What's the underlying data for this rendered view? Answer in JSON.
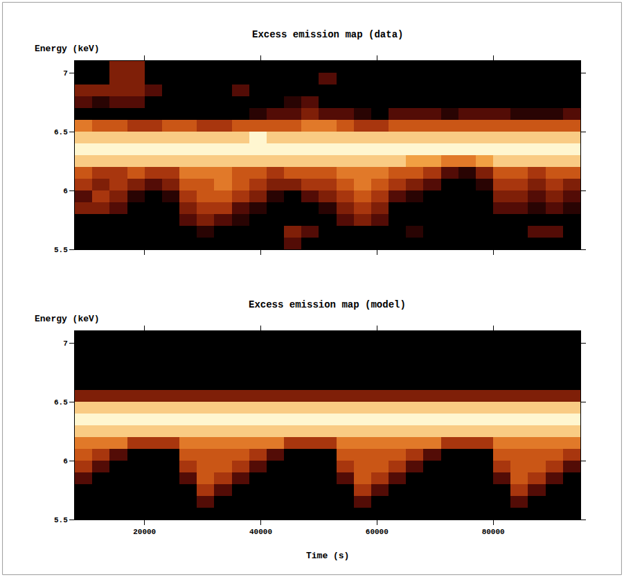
{
  "chart_data": [
    {
      "type": "heatmap",
      "title": "Excess emission map (data)",
      "ylabel": "Energy (keV)",
      "x": [
        9500,
        12500,
        15500,
        18500,
        21500,
        24500,
        27500,
        30500,
        33500,
        36500,
        39500,
        42500,
        45500,
        48500,
        51500,
        54500,
        57500,
        60500,
        63500,
        66500,
        69500,
        72500,
        75500,
        78500,
        81500,
        84500,
        87500,
        90500,
        93500
      ],
      "y": [
        5.55,
        5.65,
        5.75,
        5.85,
        5.95,
        6.05,
        6.15,
        6.25,
        6.35,
        6.45,
        6.55,
        6.65,
        6.75,
        6.85,
        6.95,
        7.05
      ],
      "z": [
        [
          0,
          0,
          0,
          0,
          0,
          0,
          0,
          0,
          0,
          0,
          0,
          0,
          2,
          0,
          0,
          0,
          0,
          0,
          0,
          0,
          0,
          0,
          0,
          0,
          0,
          0,
          0,
          0,
          0
        ],
        [
          0,
          0,
          0,
          0,
          0,
          0,
          0,
          1,
          0,
          0,
          0,
          0,
          3,
          2,
          0,
          0,
          0,
          0,
          0,
          1,
          0,
          0,
          0,
          0,
          0,
          0,
          2,
          2,
          0
        ],
        [
          0,
          0,
          0,
          0,
          0,
          0,
          2,
          3,
          2,
          1,
          0,
          0,
          0,
          0,
          0,
          2,
          3,
          2,
          0,
          0,
          0,
          0,
          0,
          0,
          0,
          0,
          0,
          0,
          0
        ],
        [
          3,
          3,
          2,
          0,
          0,
          0,
          3,
          4,
          4,
          2,
          1,
          0,
          0,
          0,
          1,
          3,
          4,
          3,
          0,
          0,
          0,
          0,
          0,
          0,
          2,
          2,
          1,
          2,
          1
        ],
        [
          2,
          4,
          3,
          1,
          0,
          1,
          4,
          5,
          5,
          4,
          3,
          1,
          0,
          2,
          3,
          4,
          5,
          4,
          2,
          1,
          0,
          0,
          0,
          0,
          3,
          3,
          2,
          3,
          2
        ],
        [
          4,
          3,
          4,
          3,
          2,
          3,
          5,
          5,
          6,
          5,
          4,
          3,
          3,
          4,
          4,
          5,
          6,
          5,
          4,
          3,
          2,
          0,
          0,
          1,
          4,
          4,
          3,
          4,
          3
        ],
        [
          5,
          4,
          4,
          5,
          4,
          4,
          6,
          6,
          6,
          5,
          5,
          4,
          5,
          5,
          5,
          6,
          6,
          6,
          5,
          5,
          4,
          2,
          1,
          3,
          5,
          5,
          4,
          5,
          5
        ],
        [
          8,
          8,
          8,
          8,
          8,
          8,
          8,
          8,
          8,
          8,
          8,
          8,
          8,
          8,
          8,
          8,
          8,
          8,
          8,
          7,
          7,
          6,
          6,
          7,
          8,
          8,
          8,
          8,
          8
        ],
        [
          9,
          9,
          9,
          9,
          9,
          9,
          9,
          9,
          9,
          9,
          9,
          9,
          9,
          9,
          9,
          9,
          9,
          9,
          9,
          9,
          9,
          9,
          9,
          9,
          9,
          9,
          9,
          9,
          9
        ],
        [
          8,
          8,
          8,
          8,
          8,
          8,
          8,
          8,
          8,
          8,
          9,
          8,
          8,
          8,
          8,
          8,
          8,
          8,
          8,
          8,
          8,
          8,
          8,
          8,
          8,
          8,
          8,
          8,
          8
        ],
        [
          6,
          5,
          5,
          4,
          4,
          5,
          5,
          4,
          4,
          5,
          5,
          5,
          5,
          6,
          6,
          5,
          4,
          4,
          5,
          5,
          5,
          5,
          5,
          5,
          5,
          5,
          5,
          5,
          5
        ],
        [
          0,
          0,
          0,
          0,
          0,
          0,
          0,
          0,
          0,
          0,
          1,
          2,
          2,
          3,
          2,
          2,
          1,
          0,
          2,
          2,
          2,
          1,
          2,
          2,
          2,
          1,
          1,
          1,
          2
        ],
        [
          2,
          1,
          2,
          2,
          0,
          0,
          0,
          0,
          0,
          0,
          0,
          0,
          1,
          2,
          0,
          0,
          0,
          0,
          0,
          0,
          0,
          0,
          0,
          0,
          0,
          0,
          0,
          0,
          0
        ],
        [
          3,
          3,
          3,
          3,
          2,
          0,
          0,
          0,
          0,
          2,
          0,
          0,
          0,
          0,
          0,
          0,
          0,
          0,
          0,
          0,
          0,
          0,
          0,
          0,
          0,
          0,
          0,
          0,
          0
        ],
        [
          0,
          0,
          3,
          3,
          0,
          0,
          0,
          0,
          0,
          0,
          0,
          0,
          0,
          0,
          2,
          0,
          0,
          0,
          0,
          0,
          0,
          0,
          0,
          0,
          0,
          0,
          0,
          0,
          0
        ],
        [
          0,
          0,
          3,
          3,
          0,
          0,
          0,
          0,
          0,
          0,
          0,
          0,
          0,
          0,
          0,
          0,
          0,
          0,
          0,
          0,
          0,
          0,
          0,
          0,
          0,
          0,
          0,
          0,
          0
        ]
      ],
      "xlim": [
        8000,
        95000
      ],
      "ylim": [
        5.5,
        7.1
      ],
      "xticks": [
        20000,
        40000,
        60000,
        80000
      ],
      "yticks": [
        5.5,
        6,
        6.5,
        7
      ],
      "tick_labels": "y"
    },
    {
      "type": "heatmap",
      "title": "Excess emission map (model)",
      "ylabel": "Energy (keV)",
      "xlabel": "Time (s)",
      "x": [
        9500,
        12500,
        15500,
        18500,
        21500,
        24500,
        27500,
        30500,
        33500,
        36500,
        39500,
        42500,
        45500,
        48500,
        51500,
        54500,
        57500,
        60500,
        63500,
        66500,
        69500,
        72500,
        75500,
        78500,
        81500,
        84500,
        87500,
        90500,
        93500
      ],
      "y": [
        5.55,
        5.65,
        5.75,
        5.85,
        5.95,
        6.05,
        6.15,
        6.25,
        6.35,
        6.45,
        6.55,
        6.65,
        6.75,
        6.85,
        6.95,
        7.05
      ],
      "z": [
        [
          0,
          0,
          0,
          0,
          0,
          0,
          0,
          0,
          0,
          0,
          0,
          0,
          0,
          0,
          0,
          0,
          0,
          0,
          0,
          0,
          0,
          0,
          0,
          0,
          0,
          0,
          0,
          0,
          0
        ],
        [
          0,
          0,
          0,
          0,
          0,
          0,
          0,
          2,
          0,
          0,
          0,
          0,
          0,
          0,
          0,
          0,
          2,
          0,
          0,
          0,
          0,
          0,
          0,
          0,
          0,
          2,
          0,
          0,
          0
        ],
        [
          0,
          0,
          0,
          0,
          0,
          0,
          0,
          4,
          2,
          0,
          0,
          0,
          0,
          0,
          0,
          0,
          4,
          2,
          0,
          0,
          0,
          0,
          0,
          0,
          0,
          4,
          2,
          0,
          0
        ],
        [
          2,
          0,
          0,
          0,
          0,
          0,
          2,
          5,
          4,
          2,
          0,
          0,
          0,
          0,
          0,
          2,
          5,
          4,
          2,
          0,
          0,
          0,
          0,
          0,
          2,
          5,
          4,
          2,
          0
        ],
        [
          4,
          2,
          0,
          0,
          0,
          0,
          4,
          5,
          5,
          4,
          2,
          0,
          0,
          0,
          0,
          4,
          5,
          5,
          4,
          2,
          0,
          0,
          0,
          0,
          4,
          5,
          5,
          4,
          2
        ],
        [
          5,
          4,
          2,
          0,
          0,
          0,
          5,
          5,
          5,
          5,
          4,
          2,
          0,
          0,
          0,
          5,
          5,
          5,
          5,
          4,
          2,
          0,
          0,
          0,
          5,
          5,
          5,
          5,
          4
        ],
        [
          6,
          6,
          6,
          4,
          4,
          4,
          6,
          6,
          6,
          6,
          6,
          6,
          4,
          4,
          4,
          6,
          6,
          6,
          6,
          6,
          6,
          4,
          4,
          4,
          6,
          6,
          6,
          6,
          6
        ],
        [
          8,
          8,
          8,
          8,
          8,
          8,
          8,
          8,
          8,
          8,
          8,
          8,
          8,
          8,
          8,
          8,
          8,
          8,
          8,
          8,
          8,
          8,
          8,
          8,
          8,
          8,
          8,
          8,
          8
        ],
        [
          9,
          9,
          9,
          9,
          9,
          9,
          9,
          9,
          9,
          9,
          9,
          9,
          9,
          9,
          9,
          9,
          9,
          9,
          9,
          9,
          9,
          9,
          9,
          9,
          9,
          9,
          9,
          9,
          9
        ],
        [
          8,
          8,
          8,
          8,
          8,
          8,
          8,
          8,
          8,
          8,
          8,
          8,
          8,
          8,
          8,
          8,
          8,
          8,
          8,
          8,
          8,
          8,
          8,
          8,
          8,
          8,
          8,
          8,
          8
        ],
        [
          3,
          3,
          3,
          3,
          3,
          3,
          3,
          3,
          3,
          3,
          3,
          3,
          3,
          3,
          3,
          3,
          3,
          3,
          3,
          3,
          3,
          3,
          3,
          3,
          3,
          3,
          3,
          3,
          3
        ],
        [
          0,
          0,
          0,
          0,
          0,
          0,
          0,
          0,
          0,
          0,
          0,
          0,
          0,
          0,
          0,
          0,
          0,
          0,
          0,
          0,
          0,
          0,
          0,
          0,
          0,
          0,
          0,
          0,
          0
        ],
        [
          0,
          0,
          0,
          0,
          0,
          0,
          0,
          0,
          0,
          0,
          0,
          0,
          0,
          0,
          0,
          0,
          0,
          0,
          0,
          0,
          0,
          0,
          0,
          0,
          0,
          0,
          0,
          0,
          0
        ],
        [
          0,
          0,
          0,
          0,
          0,
          0,
          0,
          0,
          0,
          0,
          0,
          0,
          0,
          0,
          0,
          0,
          0,
          0,
          0,
          0,
          0,
          0,
          0,
          0,
          0,
          0,
          0,
          0,
          0
        ],
        [
          0,
          0,
          0,
          0,
          0,
          0,
          0,
          0,
          0,
          0,
          0,
          0,
          0,
          0,
          0,
          0,
          0,
          0,
          0,
          0,
          0,
          0,
          0,
          0,
          0,
          0,
          0,
          0,
          0
        ],
        [
          0,
          0,
          0,
          0,
          0,
          0,
          0,
          0,
          0,
          0,
          0,
          0,
          0,
          0,
          0,
          0,
          0,
          0,
          0,
          0,
          0,
          0,
          0,
          0,
          0,
          0,
          0,
          0,
          0
        ]
      ],
      "xlim": [
        8000,
        95000
      ],
      "ylim": [
        5.5,
        7.1
      ],
      "xticks": [
        20000,
        40000,
        60000,
        80000
      ],
      "yticks": [
        5.5,
        6,
        6.5,
        7
      ]
    }
  ]
}
